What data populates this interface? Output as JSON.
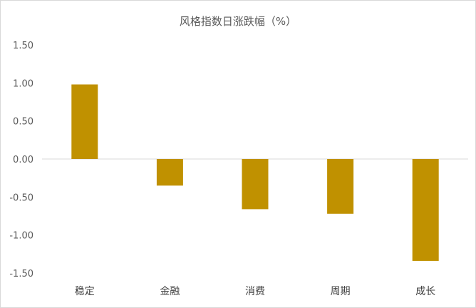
{
  "chart_data": {
    "type": "bar",
    "title": "风格指数日涨跌幅（%）",
    "categories": [
      "稳定",
      "金融",
      "消费",
      "周期",
      "成长"
    ],
    "values": [
      0.98,
      -0.35,
      -0.66,
      -0.72,
      -1.34
    ],
    "ylim": [
      -1.5,
      1.5
    ],
    "yticks": [
      "1.50",
      "1.00",
      "0.50",
      "0.00",
      "-0.50",
      "-1.00",
      "-1.50"
    ],
    "ytick_values": [
      1.5,
      1.0,
      0.5,
      0.0,
      -0.5,
      -1.0,
      -1.5
    ],
    "grid": false,
    "legend": "none",
    "bar_color": "#c09100",
    "axis_color": "#d9d9d9"
  }
}
